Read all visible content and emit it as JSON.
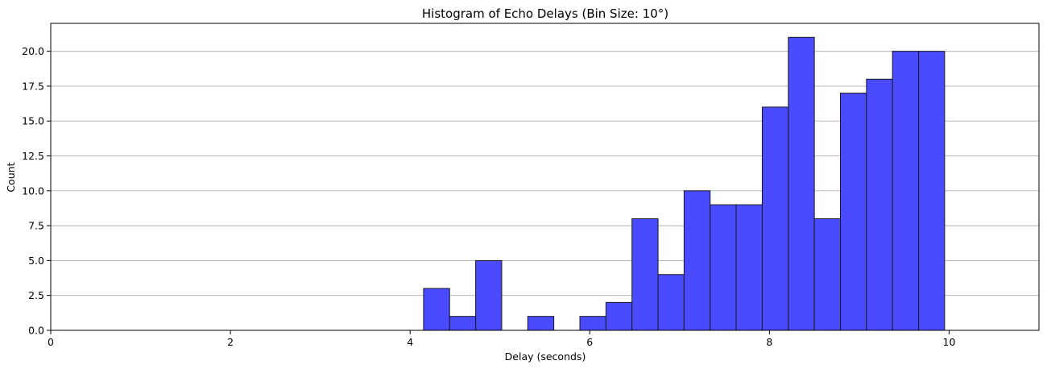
{
  "chart_data": {
    "type": "bar",
    "title": "Histogram of Echo Delays (Bin Size: 10°)",
    "xlabel": "Delay (seconds)",
    "ylabel": "Count",
    "xlim": [
      0,
      11
    ],
    "ylim": [
      0,
      22
    ],
    "xticks": [
      0,
      2,
      4,
      6,
      8,
      10
    ],
    "xtick_labels": [
      "0",
      "2",
      "4",
      "6",
      "8",
      "10"
    ],
    "yticks": [
      0,
      2.5,
      5,
      7.5,
      10,
      12.5,
      15,
      17.5,
      20
    ],
    "ytick_labels": [
      "0.0",
      "2.5",
      "5.0",
      "7.5",
      "10.0",
      "12.5",
      "15.0",
      "17.5",
      "20.0"
    ],
    "grid": "y",
    "bar_color": "#4a4aff",
    "bins": [
      {
        "x0": 4.15,
        "x1": 4.44,
        "count": 3
      },
      {
        "x0": 4.44,
        "x1": 4.73,
        "count": 1
      },
      {
        "x0": 4.73,
        "x1": 5.02,
        "count": 5
      },
      {
        "x0": 5.31,
        "x1": 5.6,
        "count": 1
      },
      {
        "x0": 5.89,
        "x1": 6.18,
        "count": 1
      },
      {
        "x0": 6.18,
        "x1": 6.47,
        "count": 2
      },
      {
        "x0": 6.47,
        "x1": 6.76,
        "count": 8
      },
      {
        "x0": 6.76,
        "x1": 7.05,
        "count": 4
      },
      {
        "x0": 7.05,
        "x1": 7.34,
        "count": 10
      },
      {
        "x0": 7.34,
        "x1": 7.63,
        "count": 9
      },
      {
        "x0": 7.63,
        "x1": 7.92,
        "count": 9
      },
      {
        "x0": 7.92,
        "x1": 8.21,
        "count": 16
      },
      {
        "x0": 8.21,
        "x1": 8.5,
        "count": 21
      },
      {
        "x0": 8.5,
        "x1": 8.79,
        "count": 8
      },
      {
        "x0": 8.79,
        "x1": 9.08,
        "count": 17
      },
      {
        "x0": 9.08,
        "x1": 9.37,
        "count": 18
      },
      {
        "x0": 9.37,
        "x1": 9.66,
        "count": 20
      },
      {
        "x0": 9.66,
        "x1": 9.95,
        "count": 20
      }
    ]
  }
}
